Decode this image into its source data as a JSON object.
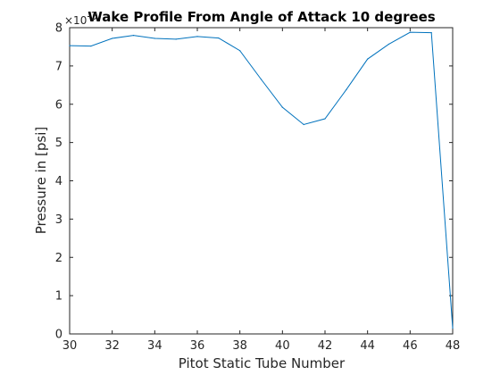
{
  "chart_data": {
    "type": "line",
    "title": "Wake Profile From Angle of Attack 10 degrees",
    "xlabel": "Pitot Static Tube Number",
    "ylabel": "Pressure in [psi]",
    "exponent_base": "×10",
    "exponent_power": "-3",
    "xlim": [
      30,
      48
    ],
    "ylim": [
      0,
      8
    ],
    "xticks": [
      30,
      32,
      34,
      36,
      38,
      40,
      42,
      44,
      46,
      48
    ],
    "yticks": [
      0,
      1,
      2,
      3,
      4,
      5,
      6,
      7,
      8
    ],
    "grid": false,
    "series": [
      {
        "color": "#0072bd",
        "x": [
          30,
          31,
          32,
          33,
          34,
          35,
          36,
          37,
          38,
          39,
          40,
          41,
          42,
          43,
          44,
          45,
          46,
          47,
          48
        ],
        "y": [
          7.53,
          7.52,
          7.72,
          7.8,
          7.72,
          7.7,
          7.77,
          7.73,
          7.4,
          6.65,
          5.92,
          5.47,
          5.62,
          6.38,
          7.18,
          7.57,
          7.88,
          7.87,
          0.15
        ]
      }
    ]
  }
}
